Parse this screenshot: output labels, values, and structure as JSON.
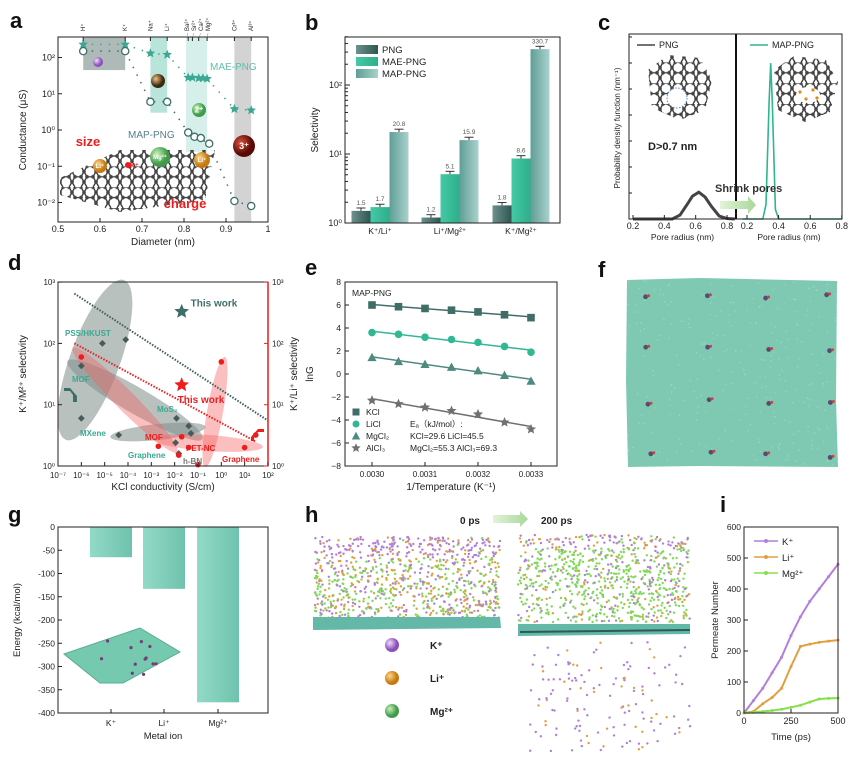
{
  "panel_labels": [
    "a",
    "b",
    "c",
    "d",
    "e",
    "f",
    "g",
    "h",
    "i"
  ],
  "colors": {
    "teal": "#3aa892",
    "dark_teal": "#3f6e69",
    "light_teal": "#8cc5bc",
    "red": "#ee1c1c",
    "grey": "#555555",
    "k_ion": "#b07fd6",
    "li_ion": "#e0a040",
    "mg_ion": "#7ed957"
  },
  "chart_data": [
    {
      "panel": "a",
      "type": "scatter",
      "xlabel": "Diameter (nm)",
      "ylabel": "Conductance (μS)",
      "xlim": [
        0.5,
        1.0
      ],
      "ylim": [
        0.0028,
        370
      ],
      "yscale": "log",
      "grid": false,
      "xticks": {
        "values": [
          0.5,
          0.6,
          0.7,
          0.8,
          0.9,
          1.0
        ],
        "labels": [
          "0.5",
          "0.6",
          "0.7",
          "0.8",
          "0.9",
          "1"
        ]
      },
      "yticks": {
        "values": [
          0.01,
          0.1,
          1,
          10,
          100
        ],
        "labels": [
          "10⁻²",
          "10⁻¹",
          "10⁰",
          "10¹",
          "10²"
        ]
      },
      "top_ions": [
        {
          "label": "H⁺",
          "x": 0.56
        },
        {
          "label": "K⁺",
          "x": 0.66
        },
        {
          "label": "Na⁺",
          "x": 0.72
        },
        {
          "label": "Li⁺",
          "x": 0.76
        },
        {
          "label": "Ba²⁺",
          "x": 0.81
        },
        {
          "label": "Sr²⁺",
          "x": 0.82
        },
        {
          "label": "Ca²⁺",
          "x": 0.835
        },
        {
          "label": "Mg²⁺",
          "x": 0.855
        },
        {
          "label": "Cr³⁺",
          "x": 0.92
        },
        {
          "label": "Al³⁺",
          "x": 0.96
        }
      ],
      "bands": [
        {
          "x": [
            0.56,
            0.66
          ],
          "y": [
            45,
            370
          ],
          "color": "#9aa9a6"
        },
        {
          "x": [
            0.72,
            0.76
          ],
          "y": [
            3,
            370
          ],
          "color": "#a8ddd0"
        },
        {
          "x": [
            0.805,
            0.855
          ],
          "y": [
            0.25,
            370
          ],
          "color": "#cdebe5"
        },
        {
          "x": [
            0.92,
            0.96
          ],
          "y": [
            0.0028,
            370
          ],
          "color": "#c8c8c8"
        }
      ],
      "series": [
        {
          "name": "MAE-PNG",
          "color": "#3aa892",
          "marker": "star",
          "x": [
            0.56,
            0.66,
            0.72,
            0.76,
            0.81,
            0.82,
            0.835,
            0.845,
            0.855,
            0.92,
            0.96
          ],
          "y": [
            230,
            230,
            130,
            120,
            28,
            28,
            27,
            27,
            26,
            3.8,
            3.5
          ]
        },
        {
          "name": "MAP-PNG",
          "color": "#3f6e69",
          "marker": "open-circle",
          "x": [
            0.56,
            0.66,
            0.72,
            0.76,
            0.81,
            0.825,
            0.84,
            0.86,
            0.92,
            0.96
          ],
          "y": [
            150,
            150,
            6,
            6,
            0.85,
            0.65,
            0.6,
            0.42,
            0.011,
            0.008
          ]
        }
      ],
      "guide_lines": [
        {
          "x": [
            0.56,
            0.66,
            0.72,
            0.76,
            0.81,
            0.855,
            0.92,
            0.96
          ],
          "y": [
            230,
            230,
            130,
            120,
            28,
            26,
            3.8,
            3.5
          ]
        },
        {
          "x": [
            0.56,
            0.66,
            0.72,
            0.76,
            0.81,
            0.86,
            0.92,
            0.96
          ],
          "y": [
            150,
            150,
            6,
            6,
            0.85,
            0.42,
            0.011,
            0.008
          ]
        }
      ],
      "annotations": {
        "size": "size",
        "charge": "charge"
      },
      "ion_spheres": [
        "Li⁺",
        "K⁺",
        "Mg²⁺",
        "Li⁺",
        "2⁺",
        "3⁺"
      ]
    },
    {
      "panel": "b",
      "type": "bar",
      "yscale": "log",
      "ylabel": "Selectivity",
      "ylim": [
        1,
        500
      ],
      "yticks": {
        "values": [
          1,
          10,
          100
        ],
        "labels": [
          "10⁰",
          "10¹",
          "10²"
        ]
      },
      "categories": [
        "K⁺/Li⁺",
        "Li⁺/Mg²⁺",
        "K⁺/Mg²⁺"
      ],
      "series": [
        {
          "name": "PNG",
          "color": "#3f6e69",
          "values": [
            1.5,
            1.2,
            1.8
          ],
          "labels": [
            "1.5",
            "1.2",
            "1.8"
          ]
        },
        {
          "name": "MAE-PNG",
          "color": "#3cbf9d",
          "values": [
            1.7,
            5.1,
            8.6
          ],
          "labels": [
            "1.7",
            "5.1",
            "8.6"
          ]
        },
        {
          "name": "MAP-PNG",
          "color": "#7fb9b1",
          "values": [
            20.8,
            15.9,
            330.7
          ],
          "labels": [
            "20.8",
            "15.9",
            "330.7"
          ]
        }
      ],
      "legend": "top-left"
    },
    {
      "panel": "c",
      "type": "line",
      "ylabel": "Probability density function (nm⁻¹)",
      "subplots": [
        {
          "name": "PNG",
          "color": "#444444",
          "xlabel": "Pore radius (nm)",
          "xlim": [
            0.2,
            0.85
          ],
          "xticks": {
            "values": [
              0.2,
              0.4,
              0.6,
              0.8
            ],
            "labels": [
              "0.2",
              "0.4",
              "0.6",
              "0.8"
            ]
          },
          "x": [
            0.2,
            0.45,
            0.5,
            0.55,
            0.58,
            0.62,
            0.66,
            0.7,
            0.75,
            0.8,
            0.85
          ],
          "y": [
            0,
            0,
            0.08,
            0.32,
            0.47,
            0.55,
            0.45,
            0.26,
            0.06,
            0.01,
            0
          ]
        },
        {
          "name": "MAP-PNG",
          "color": "#2fb58f",
          "xlabel": "Pore radius (nm)",
          "xlim": [
            0.17,
            0.8
          ],
          "xticks": {
            "values": [
              0.2,
              0.4,
              0.6,
              0.8
            ],
            "labels": [
              "0.2",
              "0.4",
              "0.6",
              "0.8"
            ]
          },
          "x": [
            0.17,
            0.3,
            0.32,
            0.34,
            0.35,
            0.36,
            0.38,
            0.4,
            0.8
          ],
          "y": [
            0,
            0,
            0.3,
            2.4,
            3.2,
            2.4,
            0.2,
            0,
            0
          ]
        }
      ],
      "ylim": [
        0,
        3.8
      ],
      "annotations": {
        "pore": "D>0.7 nm",
        "shrink": "Shrink pores"
      }
    },
    {
      "panel": "d",
      "type": "scatter",
      "xscale": "log",
      "yscale": "log",
      "xlabel": "KCl conductivity (S/cm)",
      "ylabel": "K⁺/M²⁺ selectivity",
      "y2label": "K⁺/Li⁺ selectivity",
      "xlim": [
        1e-07,
        100
      ],
      "ylim": [
        1,
        1000
      ],
      "y2lim": [
        1,
        1000
      ],
      "xticks": {
        "values": [
          1e-07,
          1e-06,
          1e-05,
          0.0001,
          0.001,
          0.01,
          0.1,
          1,
          10,
          100
        ],
        "labels": [
          "10⁻⁷",
          "10⁻⁶",
          "10⁻⁵",
          "10⁻⁴",
          "10⁻³",
          "10⁻²",
          "10⁻¹",
          "10⁰",
          "10¹",
          "10²"
        ]
      },
      "yticks": {
        "values": [
          1,
          10,
          100,
          1000
        ],
        "labels": [
          "10⁰",
          "10¹",
          "10²",
          "10³"
        ]
      },
      "series": [
        {
          "axis": "left",
          "color": "#4a5a58",
          "points": [
            [
              1e-06,
              43
            ],
            [
              1e-06,
              6
            ],
            [
              8e-06,
              100
            ],
            [
              8e-05,
              115
            ],
            [
              4e-05,
              3.2
            ],
            [
              0.012,
              6
            ],
            [
              0.011,
              2.4
            ],
            [
              0.04,
              4.5
            ],
            [
              0.05,
              3.4
            ],
            [
              0.015,
              1.6
            ]
          ]
        },
        {
          "axis": "right",
          "color": "#ee1c1c",
          "points": [
            [
              1e-06,
              60
            ],
            [
              0.002,
              2.1
            ],
            [
              0.02,
              3
            ],
            [
              0.015,
              1.5
            ],
            [
              0.04,
              2
            ],
            [
              0.1,
              1.05
            ],
            [
              1,
              50
            ],
            [
              10,
              2
            ],
            [
              30,
              3.2
            ]
          ]
        }
      ],
      "this_work": [
        {
          "axis": "left",
          "x": 0.02,
          "y": 330,
          "label": "This work",
          "color": "#3f6e69"
        },
        {
          "axis": "right",
          "x": 0.02,
          "y": 21,
          "label": "This work",
          "color": "#ee1c1c"
        }
      ],
      "upper_bounds": [
        {
          "axis": "left",
          "x": [
            5e-07,
            100
          ],
          "y": [
            650,
            5.5
          ],
          "color": "#3f5e5a"
        },
        {
          "axis": "right",
          "x": [
            5e-07,
            30
          ],
          "y": [
            100,
            2.5
          ],
          "color": "#ee1c1c"
        }
      ],
      "labels_left": [
        "PSS/HKUST",
        "MOF",
        "MoS₂",
        "MXene",
        "Graphene",
        "h-BN"
      ],
      "labels_right": [
        "MOF",
        "PET-NC",
        "Graphene"
      ]
    },
    {
      "panel": "e",
      "type": "line",
      "title": "MAP-PNG",
      "xlabel": "1/Temperature (K⁻¹)",
      "ylabel": "lnG",
      "xlim": [
        0.00295,
        0.003335
      ],
      "ylim": [
        -8,
        8
      ],
      "xticks": {
        "values": [
          0.003,
          0.0031,
          0.0032,
          0.0033
        ],
        "labels": [
          "0.0030",
          "0.0031",
          "0.0032",
          "0.0033"
        ]
      },
      "yticks": {
        "values": [
          -8,
          -6,
          -4,
          -2,
          0,
          2,
          4,
          6,
          8
        ],
        "labels": [
          "−8",
          "−6",
          "−4",
          "−2",
          "0",
          "2",
          "4",
          "6",
          "8"
        ]
      },
      "x": [
        0.003,
        0.00305,
        0.0031,
        0.00315,
        0.0032,
        0.00325,
        0.0033
      ],
      "series": [
        {
          "name": "KCl",
          "marker": "square",
          "color": "#3f6e69",
          "values": [
            6.0,
            5.85,
            5.7,
            5.55,
            5.4,
            5.15,
            4.9
          ]
        },
        {
          "name": "LiCl",
          "marker": "circle",
          "color": "#2fb893",
          "values": [
            3.6,
            3.45,
            3.2,
            3.0,
            2.75,
            2.4,
            1.9
          ]
        },
        {
          "name": "MgCl₂",
          "marker": "triangle",
          "color": "#4f8a80",
          "values": [
            1.45,
            1.1,
            0.85,
            0.6,
            0.3,
            -0.1,
            -0.6
          ]
        },
        {
          "name": "AlCl₃",
          "marker": "star",
          "color": "#707070",
          "values": [
            -2.3,
            -2.6,
            -2.9,
            -3.2,
            -3.5,
            -4.2,
            -4.8
          ]
        }
      ],
      "annotation": [
        "Eₐ（kJ/mol）:",
        "KCl=29.6  LiCl=45.5",
        "MgCl₂=55.3  AlCl₃=69.3"
      ],
      "legend": "bottom-left"
    },
    {
      "panel": "g",
      "type": "bar",
      "xlabel": "Metal ion",
      "ylabel": "Energy (kcal/mol)",
      "ylim": [
        -400,
        0
      ],
      "yticks": {
        "values": [
          0,
          -50,
          -100,
          -150,
          -200,
          -250,
          -300,
          -350,
          -400
        ],
        "labels": [
          "0",
          "-50",
          "-100",
          "-150",
          "-200",
          "-250",
          "-300",
          "-350",
          "-400"
        ]
      },
      "categories": [
        "K⁺",
        "Li⁺",
        "Mg²⁺"
      ],
      "values": [
        -65,
        -133,
        -377
      ],
      "color": "#7ccdb8"
    },
    {
      "panel": "i",
      "type": "line",
      "xlabel": "Time (ps)",
      "ylabel": "Permeate Number",
      "xlim": [
        0,
        500
      ],
      "ylim": [
        0,
        600
      ],
      "xticks": {
        "values": [
          0,
          250,
          500
        ],
        "labels": [
          "0",
          "250",
          "500"
        ]
      },
      "yticks": {
        "values": [
          0,
          100,
          200,
          300,
          400,
          500,
          600
        ],
        "labels": [
          "0",
          "100",
          "200",
          "300",
          "400",
          "500",
          "600"
        ]
      },
      "x": [
        0,
        50,
        100,
        150,
        200,
        250,
        300,
        350,
        400,
        450,
        500
      ],
      "series": [
        {
          "name": "K⁺",
          "color": "#b27fdc",
          "values": [
            0,
            40,
            80,
            130,
            180,
            250,
            310,
            360,
            400,
            440,
            480
          ]
        },
        {
          "name": "Li⁺",
          "color": "#e0a040",
          "values": [
            0,
            5,
            30,
            50,
            80,
            150,
            215,
            222,
            228,
            232,
            235
          ]
        },
        {
          "name": "Mg²⁺",
          "color": "#86e04a",
          "values": [
            0,
            2,
            5,
            8,
            12,
            18,
            25,
            35,
            45,
            47,
            48
          ]
        }
      ],
      "legend": "top-left"
    }
  ],
  "panel_h": {
    "time_start": "0 ps",
    "time_end": "200 ps",
    "legend": [
      "K⁺",
      "Li⁺",
      "Mg²⁺"
    ]
  }
}
